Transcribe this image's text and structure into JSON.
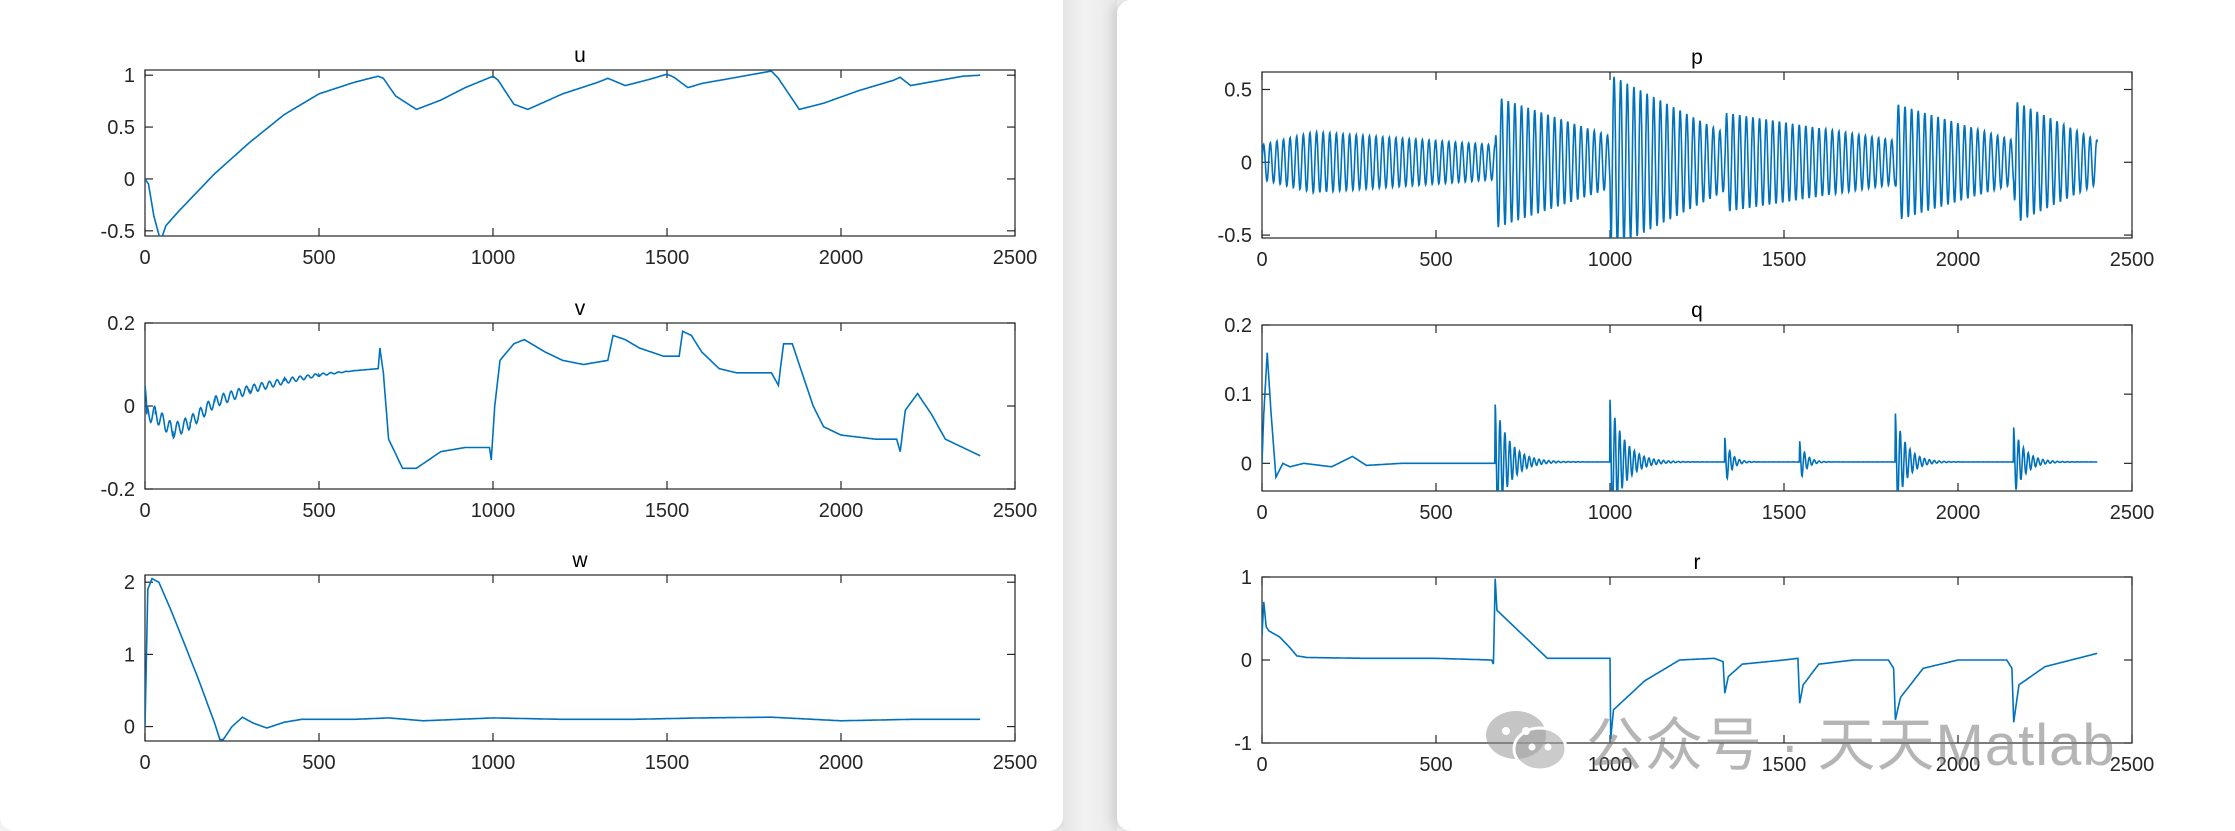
{
  "line_color": "#0072BD",
  "watermark": {
    "text": "公众号 · 天天Matlab",
    "icon": "wechat-icon"
  },
  "chart_data": [
    {
      "type": "line",
      "title": "u",
      "xlim": [
        0,
        2500
      ],
      "ylim": [
        -0.55,
        1.05
      ],
      "xticks": [
        0,
        500,
        1000,
        1500,
        2000,
        2500
      ],
      "yticks": [
        -0.5,
        0,
        0.5,
        1
      ],
      "yticklabels": [
        "-0.5",
        "0",
        "0.5",
        "1"
      ],
      "x": [
        0,
        10,
        25,
        45,
        60,
        100,
        200,
        300,
        400,
        500,
        600,
        670,
        685,
        720,
        780,
        850,
        920,
        1000,
        1015,
        1060,
        1100,
        1200,
        1300,
        1330,
        1380,
        1450,
        1500,
        1520,
        1560,
        1600,
        1700,
        1800,
        1820,
        1880,
        1950,
        2050,
        2150,
        2170,
        2200,
        2250,
        2350,
        2400
      ],
      "y": [
        0,
        -0.05,
        -0.35,
        -0.6,
        -0.45,
        -0.3,
        0.05,
        0.35,
        0.62,
        0.82,
        0.93,
        0.99,
        0.97,
        0.8,
        0.67,
        0.76,
        0.88,
        0.99,
        0.95,
        0.72,
        0.67,
        0.82,
        0.93,
        0.97,
        0.9,
        0.96,
        1.01,
        0.98,
        0.88,
        0.92,
        0.98,
        1.04,
        0.97,
        0.67,
        0.73,
        0.85,
        0.95,
        0.98,
        0.9,
        0.93,
        0.99,
        1.0
      ]
    },
    {
      "type": "line",
      "title": "v",
      "xlim": [
        0,
        2500
      ],
      "ylim": [
        -0.2,
        0.2
      ],
      "xticks": [
        0,
        500,
        1000,
        1500,
        2000,
        2500
      ],
      "yticks": [
        -0.2,
        0,
        0.2
      ],
      "yticklabels": [
        "-0.2",
        "0",
        "0.2"
      ],
      "x": [
        0,
        5,
        30,
        80,
        130,
        200,
        300,
        400,
        500,
        600,
        670,
        675,
        685,
        700,
        740,
        780,
        850,
        920,
        990,
        995,
        1005,
        1020,
        1060,
        1090,
        1150,
        1200,
        1260,
        1330,
        1345,
        1380,
        1420,
        1490,
        1535,
        1545,
        1570,
        1600,
        1650,
        1700,
        1800,
        1820,
        1835,
        1860,
        1880,
        1920,
        1950,
        2000,
        2100,
        2160,
        2170,
        2185,
        2220,
        2260,
        2300,
        2400
      ],
      "y": [
        0.05,
        -0.02,
        -0.02,
        -0.06,
        -0.04,
        0.01,
        0.04,
        0.06,
        0.075,
        0.085,
        0.09,
        0.14,
        0.08,
        -0.08,
        -0.15,
        -0.15,
        -0.11,
        -0.1,
        -0.1,
        -0.13,
        0.0,
        0.11,
        0.15,
        0.16,
        0.13,
        0.11,
        0.1,
        0.11,
        0.17,
        0.16,
        0.14,
        0.12,
        0.12,
        0.18,
        0.17,
        0.13,
        0.09,
        0.08,
        0.08,
        0.05,
        0.15,
        0.15,
        0.1,
        0.0,
        -0.05,
        -0.07,
        -0.08,
        -0.08,
        -0.11,
        -0.01,
        0.03,
        -0.02,
        -0.08,
        -0.12
      ],
      "osc": {
        "amp": 0.02,
        "period": 22,
        "x0": 0,
        "x1": 600
      }
    },
    {
      "type": "line",
      "title": "w",
      "xlim": [
        0,
        2500
      ],
      "ylim": [
        -0.2,
        2.1
      ],
      "xticks": [
        0,
        500,
        1000,
        1500,
        2000,
        2500
      ],
      "yticks": [
        0,
        1,
        2
      ],
      "yticklabels": [
        "0",
        "1",
        "2"
      ],
      "x": [
        0,
        8,
        20,
        40,
        80,
        150,
        200,
        215,
        225,
        250,
        280,
        310,
        350,
        400,
        450,
        600,
        700,
        800,
        900,
        1000,
        1200,
        1400,
        1600,
        1800,
        2000,
        2200,
        2400
      ],
      "y": [
        0,
        1.9,
        2.05,
        2.0,
        1.55,
        0.7,
        0.05,
        -0.18,
        -0.18,
        0.0,
        0.13,
        0.05,
        -0.02,
        0.06,
        0.1,
        0.1,
        0.12,
        0.08,
        0.1,
        0.12,
        0.1,
        0.1,
        0.12,
        0.13,
        0.08,
        0.1,
        0.1
      ]
    },
    {
      "type": "line",
      "title": "p",
      "xlim": [
        0,
        2500
      ],
      "ylim": [
        -0.52,
        0.62
      ],
      "xticks": [
        0,
        500,
        1000,
        1500,
        2000,
        2500
      ],
      "yticks": [
        -0.5,
        0,
        0.5
      ],
      "yticklabels": [
        "-0.5",
        "0",
        "0.5"
      ],
      "oscillation": {
        "period": 19,
        "envelope_x": [
          0,
          150,
          670,
          675,
          1000,
          1003,
          1330,
          1335,
          1820,
          1825,
          2160,
          2165,
          2400
        ],
        "envelope_amp": [
          0.12,
          0.21,
          0.12,
          0.45,
          0.18,
          0.6,
          0.2,
          0.34,
          0.15,
          0.4,
          0.15,
          0.42,
          0.15
        ]
      }
    },
    {
      "type": "line",
      "title": "q",
      "xlim": [
        0,
        2500
      ],
      "ylim": [
        -0.04,
        0.2
      ],
      "xticks": [
        0,
        500,
        1000,
        1500,
        2000,
        2500
      ],
      "yticks": [
        0,
        0.1,
        0.2
      ],
      "yticklabels": [
        "0",
        "0.1",
        "0.2"
      ],
      "x": [
        0,
        5,
        15,
        25,
        40,
        60,
        80,
        120,
        200,
        260,
        300,
        400,
        500,
        670
      ],
      "y": [
        0.0,
        0.07,
        0.16,
        0.08,
        -0.02,
        0.0,
        -0.005,
        0.0,
        -0.005,
        0.01,
        -0.003,
        0.0,
        0.0,
        0.0
      ],
      "bursts": [
        {
          "x": 670,
          "amp": 0.085,
          "decay": 90,
          "period": 14
        },
        {
          "x": 1000,
          "amp": 0.09,
          "decay": 90,
          "period": 14
        },
        {
          "x": 1330,
          "amp": 0.035,
          "decay": 40,
          "period": 14
        },
        {
          "x": 1545,
          "amp": 0.03,
          "decay": 40,
          "period": 14
        },
        {
          "x": 1820,
          "amp": 0.07,
          "decay": 70,
          "period": 14
        },
        {
          "x": 2160,
          "amp": 0.05,
          "decay": 70,
          "period": 14
        }
      ]
    },
    {
      "type": "line",
      "title": "r",
      "xlim": [
        0,
        2500
      ],
      "ylim": [
        -1,
        1
      ],
      "xticks": [
        0,
        500,
        1000,
        1500,
        2000,
        2500
      ],
      "yticks": [
        -1,
        0,
        1
      ],
      "yticklabels": [
        "-1",
        "0",
        "1"
      ],
      "x": [
        0,
        5,
        12,
        20,
        50,
        80,
        100,
        130,
        300,
        500,
        660,
        665,
        670,
        675,
        700,
        800,
        820,
        900,
        1000,
        1002,
        1010,
        1100,
        1200,
        1300,
        1325,
        1330,
        1340,
        1380,
        1500,
        1540,
        1545,
        1555,
        1600,
        1700,
        1800,
        1815,
        1820,
        1835,
        1900,
        2000,
        2140,
        2155,
        2160,
        2175,
        2250,
        2400
      ],
      "y": [
        0.3,
        0.7,
        0.4,
        0.35,
        0.28,
        0.15,
        0.05,
        0.03,
        0.02,
        0.02,
        0.0,
        -0.05,
        0.98,
        0.6,
        0.5,
        0.1,
        0.02,
        0.02,
        0.02,
        -0.95,
        -0.6,
        -0.25,
        0.0,
        0.02,
        -0.02,
        -0.4,
        -0.2,
        -0.05,
        0.0,
        0.02,
        -0.52,
        -0.3,
        -0.05,
        0.0,
        0.0,
        -0.1,
        -0.72,
        -0.45,
        -0.1,
        0.0,
        0.0,
        -0.1,
        -0.75,
        -0.3,
        -0.08,
        0.08
      ]
    }
  ]
}
